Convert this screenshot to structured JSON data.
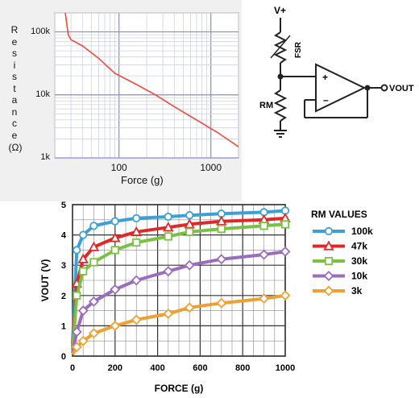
{
  "resistance_chart": {
    "ylabel_letters": [
      "R",
      "e",
      "s",
      "i",
      "s",
      "t",
      "a",
      "n",
      "c",
      "e"
    ],
    "ylabel_unit": "(Ω)",
    "xlabel": "Force (g)",
    "y_ticks": [
      "100k",
      "10k",
      "1k"
    ],
    "x_ticks": [
      "100",
      "1000"
    ],
    "line_color": "#ee4a35"
  },
  "circuit": {
    "supply": "V+",
    "sensor": "FSR",
    "resistor": "RM",
    "output": "VOUT",
    "plus": "+",
    "minus": "–"
  },
  "vout_chart": {
    "ylabel": "VOUT (V)",
    "xlabel": "FORCE (g)",
    "legend_title": "RM VALUES",
    "y_ticks": [
      "0",
      "1",
      "2",
      "3",
      "4",
      "5"
    ],
    "x_ticks": [
      "0",
      "200",
      "400",
      "600",
      "800",
      "1000"
    ]
  },
  "chart_data": [
    {
      "type": "line",
      "scale": "log-log",
      "xlabel": "Force (g)",
      "ylabel": "Resistance (Ω)",
      "xlim": [
        20,
        2000
      ],
      "ylim": [
        1000,
        200000
      ],
      "grid": true,
      "series": [
        {
          "values_xy": [
            [
              26,
              200000
            ],
            [
              28,
              90000
            ],
            [
              30,
              75000
            ],
            [
              40,
              60000
            ],
            [
              60,
              38000
            ],
            [
              90,
              22000
            ],
            [
              150,
              15000
            ],
            [
              250,
              10000
            ],
            [
              400,
              6500
            ],
            [
              700,
              4000
            ],
            [
              1200,
              2500
            ],
            [
              2000,
              1500
            ]
          ],
          "color": "#ee4a35"
        }
      ]
    },
    {
      "type": "line",
      "xlabel": "FORCE (g)",
      "ylabel": "VOUT (V)",
      "xlim": [
        0,
        1000
      ],
      "ylim": [
        0,
        5
      ],
      "grid": true,
      "legend": "right",
      "x": [
        0,
        20,
        50,
        100,
        200,
        300,
        450,
        550,
        700,
        900,
        1000
      ],
      "series": [
        {
          "name": "100k",
          "color": "#3aa0d8",
          "marker": "circle",
          "values": [
            0.4,
            3.5,
            4.0,
            4.3,
            4.45,
            4.55,
            4.6,
            4.65,
            4.7,
            4.75,
            4.8
          ]
        },
        {
          "name": "47k",
          "color": "#e02828",
          "marker": "triangle",
          "values": [
            0.3,
            2.4,
            3.2,
            3.6,
            3.9,
            4.1,
            4.25,
            4.35,
            4.45,
            4.5,
            4.55
          ]
        },
        {
          "name": "30k",
          "color": "#7ac043",
          "marker": "square",
          "values": [
            0.2,
            2.0,
            2.8,
            3.1,
            3.5,
            3.75,
            3.95,
            4.1,
            4.2,
            4.3,
            4.35
          ]
        },
        {
          "name": "10k",
          "color": "#9b6bbd",
          "marker": "diamond",
          "values": [
            0.1,
            0.8,
            1.5,
            1.8,
            2.2,
            2.5,
            2.8,
            3.0,
            3.2,
            3.35,
            3.45
          ]
        },
        {
          "name": "3k",
          "color": "#f0a030",
          "marker": "diamond",
          "values": [
            0.05,
            0.3,
            0.5,
            0.75,
            1.0,
            1.2,
            1.4,
            1.6,
            1.75,
            1.9,
            2.0
          ]
        }
      ]
    }
  ]
}
